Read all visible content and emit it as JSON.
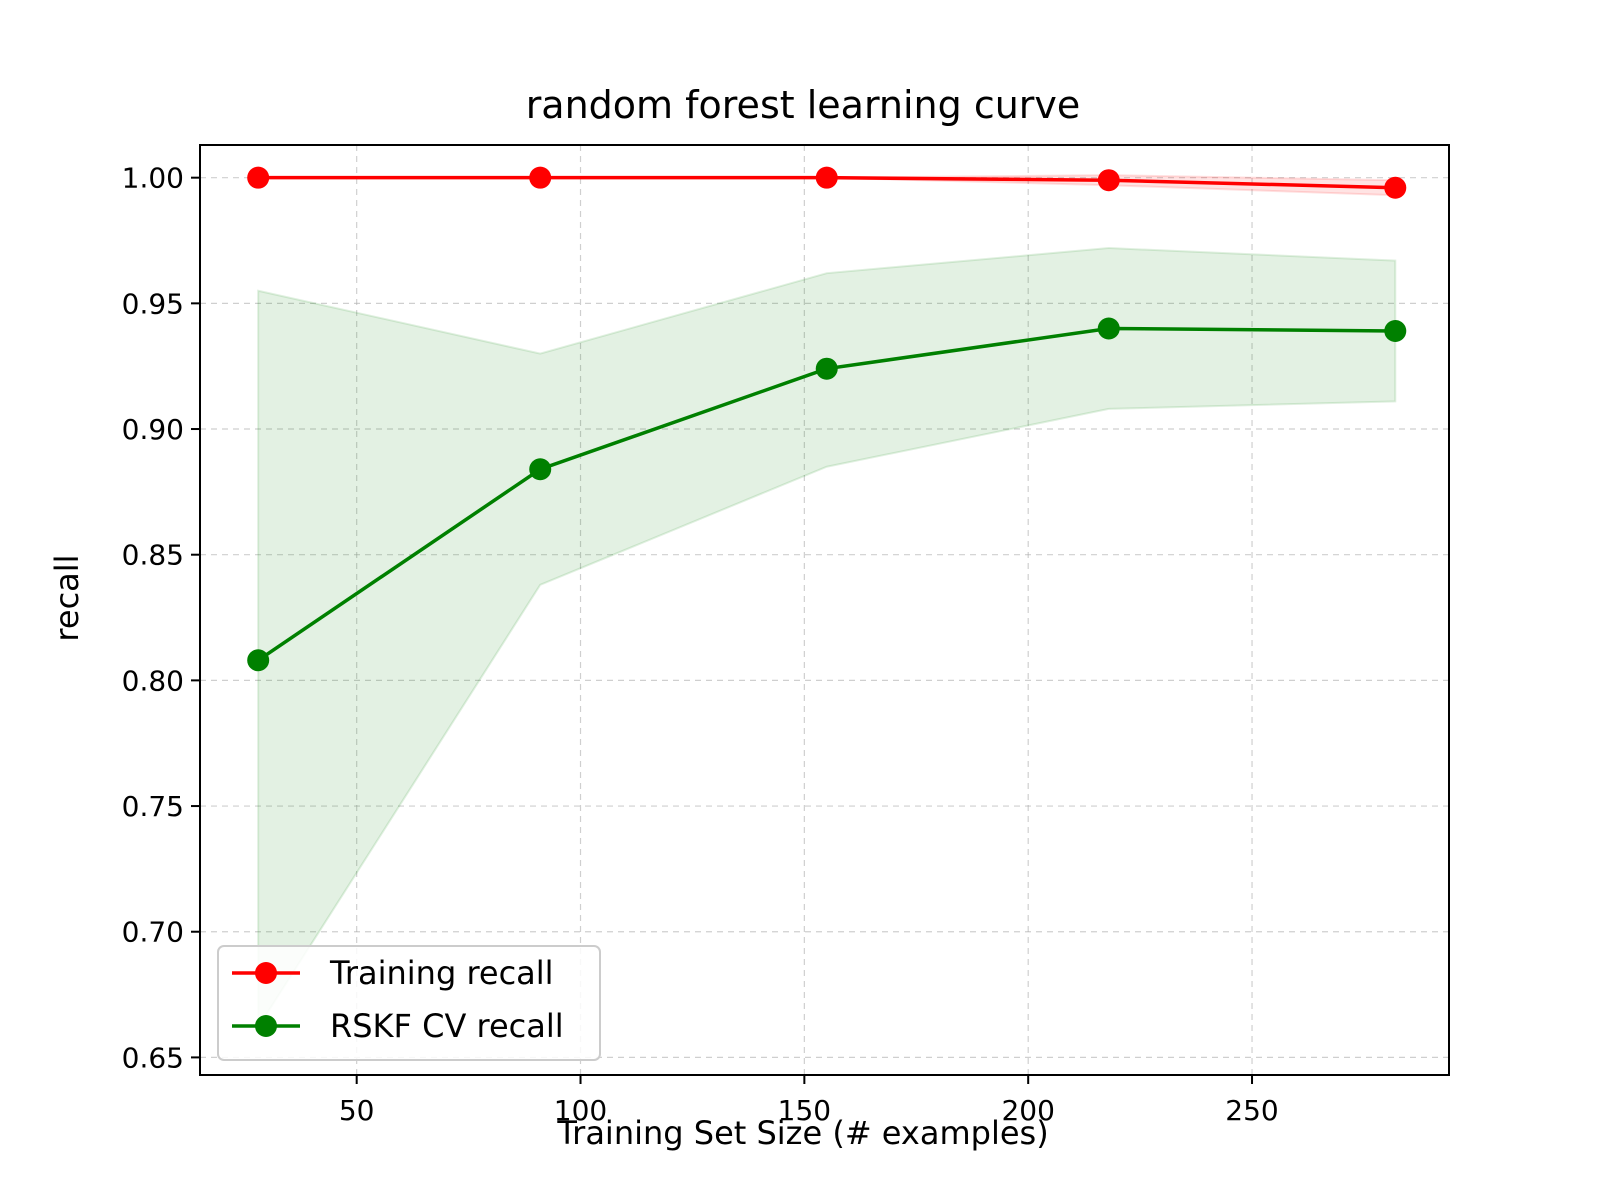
{
  "chart_data": {
    "type": "line",
    "title": "random forest learning curve",
    "xlabel": "Training Set Size (# examples)",
    "ylabel": "recall",
    "xlim": [
      15,
      294
    ],
    "ylim": [
      0.643,
      1.013
    ],
    "xticks": [
      50,
      100,
      150,
      200,
      250
    ],
    "yticks": [
      0.65,
      0.7,
      0.75,
      0.8,
      0.85,
      0.9,
      0.95,
      1.0
    ],
    "xtick_labels": [
      "50",
      "100",
      "150",
      "200",
      "250"
    ],
    "ytick_labels": [
      "0.65",
      "0.70",
      "0.75",
      "0.80",
      "0.85",
      "0.90",
      "0.95",
      "1.00"
    ],
    "grid": true,
    "legend_position": "lower-left",
    "x": [
      28,
      91,
      155,
      218,
      282
    ],
    "series": [
      {
        "name": "Training recall",
        "color": "#ff0000",
        "values": [
          1.0,
          1.0,
          1.0,
          0.999,
          0.996
        ],
        "band_lower": [
          1.0,
          1.0,
          1.0,
          0.997,
          0.993
        ],
        "band_upper": [
          1.0,
          1.0,
          1.0,
          1.001,
          0.999
        ]
      },
      {
        "name": "RSKF CV recall",
        "color": "#008000",
        "values": [
          0.808,
          0.884,
          0.924,
          0.94,
          0.939
        ],
        "band_lower": [
          0.662,
          0.838,
          0.885,
          0.908,
          0.911
        ],
        "band_upper": [
          0.955,
          0.93,
          0.962,
          0.972,
          0.967
        ]
      }
    ]
  }
}
